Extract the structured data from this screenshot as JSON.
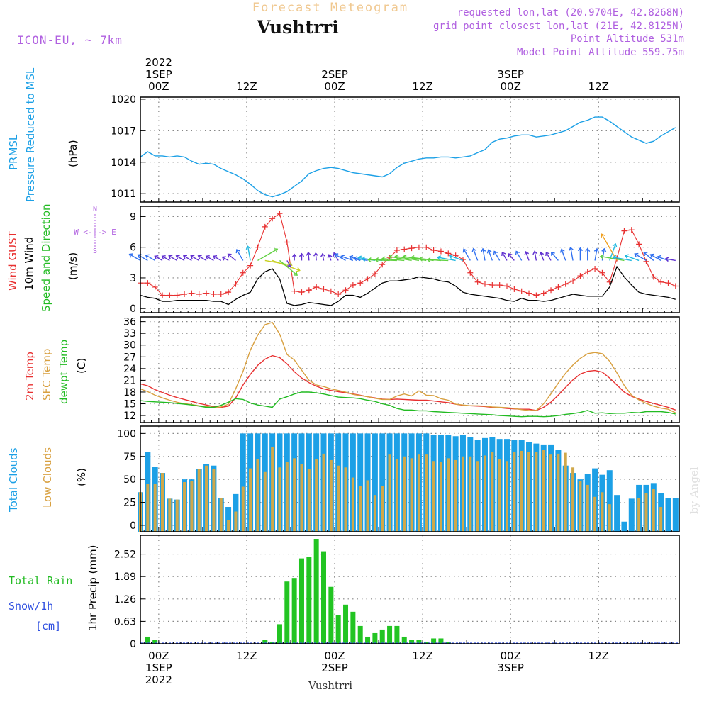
{
  "header": {
    "title_top": "Forecast Meteogram",
    "location": "Vushtrri",
    "model": "ICON-EU, ~ 7km",
    "requested": "requested lon,lat (20.9704E, 42.8268N)",
    "grid_point": "grid point closest lon,lat (21E, 42.8125N)",
    "point_altitude": "Point Altitude 531m",
    "model_altitude": "Model Point Altitude 559.75m",
    "footer_location": "Vushtrri",
    "credit": "by Angel"
  },
  "time_axis": {
    "top_labels": [
      {
        "hour": 0,
        "lines": [
          "2022",
          "1SEP",
          "00Z"
        ]
      },
      {
        "hour": 12,
        "lines": [
          "12Z"
        ]
      },
      {
        "hour": 24,
        "lines": [
          "2SEP",
          "00Z"
        ]
      },
      {
        "hour": 36,
        "lines": [
          "12Z"
        ]
      },
      {
        "hour": 48,
        "lines": [
          "3SEP",
          "00Z"
        ]
      },
      {
        "hour": 60,
        "lines": [
          "12Z"
        ]
      }
    ],
    "bottom_labels": [
      {
        "hour": 0,
        "lines": [
          "00Z",
          "1SEP",
          "2022"
        ]
      },
      {
        "hour": 12,
        "lines": [
          "12Z"
        ]
      },
      {
        "hour": 24,
        "lines": [
          "00Z",
          "2SEP"
        ]
      },
      {
        "hour": 36,
        "lines": [
          "12Z"
        ]
      },
      {
        "hour": 48,
        "lines": [
          "00Z",
          "3SEP"
        ]
      },
      {
        "hour": 60,
        "lines": [
          "12Z"
        ]
      }
    ]
  },
  "panels": {
    "pressure": {
      "label_1": "PRMSL",
      "label_2": "Pressure Reduced to MSL",
      "unit": "(hPa)",
      "ticks": [
        "1011",
        "1014",
        "1017",
        "1020"
      ]
    },
    "wind": {
      "label_gust": "Wind GUST",
      "label_wind": "10m Wind",
      "label_dir": "Speed and Direction",
      "unit": "(m/s)",
      "ticks": [
        "0",
        "3",
        "6",
        "9"
      ],
      "compass": [
        "N",
        "W <-|-> E",
        "S"
      ]
    },
    "temp": {
      "label_2m": "2m Temp",
      "label_sfc": "SFC Temp",
      "label_dew": "dewpt Temp",
      "unit": "(C)",
      "ticks": [
        "12",
        "15",
        "18",
        "21",
        "24",
        "27",
        "30",
        "33",
        "36"
      ]
    },
    "clouds": {
      "label_total": "Total Clouds",
      "label_low": "Low Clouds",
      "unit": "(%)",
      "ticks": [
        "0",
        "25",
        "50",
        "75",
        "100"
      ]
    },
    "precip": {
      "label_rain": "Total  Rain",
      "label_snow": "Snow/1h",
      "label_cm": "[cm]",
      "unit": "1hr Precip (mm)",
      "ticks": [
        "0",
        "0.63",
        "1.26",
        "1.89",
        "2.52"
      ]
    }
  },
  "chart_data": [
    {
      "type": "line",
      "series": [
        {
          "name": "PRMSL",
          "x": [
            -2.5,
            -1.5,
            -0.5,
            0.5,
            1.5,
            2.5,
            3.5,
            4.5,
            5.5,
            6.5,
            7.5,
            8.5,
            9.5,
            10.5,
            11.5,
            12.5,
            13.5,
            14.5,
            15.5,
            16.5,
            17.5,
            18.5,
            19.5,
            20.5,
            21.5,
            22.5,
            23.5,
            24.5,
            25.5,
            26.5,
            27.5,
            28.5,
            29.5,
            30.5,
            31.5,
            32.5,
            33.5,
            34.5,
            35.5,
            36.5,
            37.5,
            38.5,
            39.5,
            40.5,
            41.5,
            42.5,
            43.5,
            44.5,
            45.5,
            46.5,
            47.5,
            48.5,
            49.5,
            50.5,
            51.5,
            52.5,
            53.5,
            54.5,
            55.5,
            56.5,
            57.5,
            58.5,
            59.5,
            60.5,
            61.5,
            62.5,
            63.5,
            64.5,
            65.5,
            66.5,
            67.5,
            68.5,
            69.5,
            70.5
          ],
          "values": [
            1014.5,
            1015.0,
            1014.6,
            1014.6,
            1014.5,
            1014.6,
            1014.5,
            1014.1,
            1013.8,
            1013.9,
            1013.8,
            1013.4,
            1013.1,
            1012.8,
            1012.4,
            1011.9,
            1011.3,
            1010.9,
            1010.7,
            1010.9,
            1011.2,
            1011.7,
            1012.2,
            1012.9,
            1013.2,
            1013.4,
            1013.5,
            1013.4,
            1013.2,
            1013.0,
            1012.9,
            1012.8,
            1012.7,
            1012.6,
            1012.9,
            1013.5,
            1013.9,
            1014.1,
            1014.3,
            1014.4,
            1014.4,
            1014.5,
            1014.5,
            1014.4,
            1014.5,
            1014.6,
            1014.9,
            1015.2,
            1015.9,
            1016.2,
            1016.3,
            1016.5,
            1016.6,
            1016.6,
            1016.4,
            1016.5,
            1016.6,
            1016.8,
            1017.0,
            1017.4,
            1017.8,
            1018.0,
            1018.3,
            1018.3,
            1017.9,
            1017.4,
            1016.9,
            1016.4,
            1016.1,
            1015.8,
            1016.0,
            1016.5,
            1016.9,
            1017.3
          ]
        }
      ],
      "ylim": [
        1010.2,
        1020.2
      ],
      "ylabel": "(hPa)"
    },
    {
      "type": "line",
      "series": [
        {
          "name": "Wind GUST",
          "values": [
            2.5,
            2.5,
            2.1,
            1.3,
            1.3,
            1.3,
            1.4,
            1.5,
            1.4,
            1.5,
            1.4,
            1.4,
            1.6,
            2.4,
            3.5,
            4.2,
            6.0,
            8.0,
            8.8,
            9.3,
            6.5,
            1.7,
            1.6,
            1.8,
            2.1,
            1.9,
            1.7,
            1.4,
            1.8,
            2.3,
            2.5,
            2.9,
            3.4,
            4.3,
            5.0,
            5.7,
            5.8,
            5.9,
            6.0,
            6.0,
            5.7,
            5.6,
            5.4,
            5.2,
            4.8,
            3.5,
            2.6,
            2.4,
            2.3,
            2.3,
            2.2,
            1.9,
            1.7,
            1.5,
            1.3,
            1.5,
            1.8,
            2.1,
            2.4,
            2.7,
            3.2,
            3.6,
            3.9,
            3.5,
            2.6,
            4.9,
            7.6,
            7.7,
            6.3,
            4.6,
            3.1,
            2.6,
            2.5,
            2.2
          ]
        },
        {
          "name": "10m Wind",
          "values": [
            1.3,
            1.1,
            1.0,
            0.7,
            0.7,
            0.8,
            0.8,
            0.8,
            0.8,
            0.8,
            0.7,
            0.7,
            0.4,
            0.9,
            1.3,
            1.6,
            2.9,
            3.6,
            3.9,
            2.9,
            0.5,
            0.3,
            0.4,
            0.6,
            0.5,
            0.4,
            0.3,
            0.7,
            1.3,
            1.3,
            1.1,
            1.5,
            2.0,
            2.5,
            2.7,
            2.7,
            2.8,
            2.9,
            3.1,
            3.0,
            2.9,
            2.7,
            2.6,
            2.2,
            1.6,
            1.4,
            1.3,
            1.2,
            1.1,
            1.0,
            0.8,
            0.7,
            1.0,
            0.8,
            0.8,
            0.7,
            0.8,
            1.0,
            1.2,
            1.4,
            1.3,
            1.2,
            1.2,
            1.2,
            2.1,
            4.1,
            3.1,
            2.3,
            1.6,
            1.4,
            1.3,
            1.2,
            1.1,
            0.9
          ]
        }
      ],
      "ylim": [
        -0.4,
        10
      ],
      "ylabel": "(m/s)"
    },
    {
      "type": "line",
      "series": [
        {
          "name": "2m Temp",
          "values": [
            20.1,
            19.6,
            18.6,
            17.9,
            17.2,
            16.6,
            16.1,
            15.6,
            15.1,
            14.7,
            14.3,
            14.1,
            14.4,
            16.5,
            19.8,
            22.5,
            24.8,
            26.4,
            27.3,
            26.8,
            25.2,
            23.2,
            21.6,
            20.4,
            19.5,
            18.8,
            18.4,
            18.1,
            17.8,
            17.5,
            17.2,
            16.8,
            16.5,
            16.2,
            16.1,
            16.2,
            16.1,
            16.0,
            15.9,
            15.9,
            15.7,
            15.5,
            15.3,
            14.9,
            14.6,
            14.5,
            14.4,
            14.3,
            14.1,
            14.0,
            13.8,
            13.7,
            13.6,
            13.6,
            13.3,
            14.1,
            15.4,
            17.2,
            19.2,
            21.1,
            22.6,
            23.3,
            23.5,
            23.1,
            21.6,
            19.8,
            18.0,
            16.9,
            16.2,
            15.6,
            15.1,
            14.6,
            14.1,
            13.4
          ]
        },
        {
          "name": "SFC Temp",
          "values": [
            18.8,
            18.1,
            17.2,
            16.5,
            15.9,
            15.4,
            15.0,
            14.8,
            14.5,
            14.3,
            14.1,
            14.2,
            14.9,
            18.8,
            23.3,
            28.7,
            32.5,
            35.2,
            35.8,
            32.8,
            27.6,
            26.2,
            23.6,
            21.0,
            19.8,
            19.4,
            18.8,
            18.4,
            18.0,
            17.4,
            17.1,
            16.8,
            16.4,
            16.1,
            16.1,
            17.0,
            17.5,
            17.0,
            18.3,
            17.2,
            17.1,
            16.3,
            15.9,
            14.9,
            14.7,
            14.5,
            14.5,
            14.4,
            14.2,
            14.1,
            14.0,
            13.8,
            13.5,
            13.3,
            13.3,
            15.0,
            17.5,
            20.3,
            22.8,
            24.9,
            26.6,
            27.8,
            28.1,
            27.8,
            25.9,
            22.9,
            19.7,
            17.2,
            16.0,
            15.1,
            14.4,
            13.9,
            13.6,
            12.7
          ]
        },
        {
          "name": "dewpt Temp",
          "values": [
            15.8,
            15.6,
            15.5,
            15.4,
            15.3,
            15.1,
            14.9,
            14.7,
            14.4,
            14.1,
            14.1,
            14.6,
            15.4,
            16.3,
            16.1,
            15.2,
            14.7,
            14.4,
            14.1,
            16.2,
            16.8,
            17.5,
            18.0,
            18.0,
            17.8,
            17.5,
            17.1,
            16.7,
            16.6,
            16.5,
            16.3,
            15.9,
            15.6,
            15.0,
            14.6,
            13.8,
            13.4,
            13.4,
            13.2,
            13.2,
            13.0,
            12.9,
            12.8,
            12.7,
            12.6,
            12.5,
            12.4,
            12.3,
            12.2,
            12.0,
            11.9,
            11.8,
            11.7,
            11.8,
            11.8,
            11.7,
            11.8,
            12.0,
            12.3,
            12.5,
            12.8,
            13.3,
            12.6,
            12.7,
            12.5,
            12.6,
            12.6,
            12.8,
            12.7,
            13.0,
            13.0,
            13.0,
            12.8,
            12.4
          ]
        }
      ],
      "ylim": [
        10.2,
        37.2
      ],
      "ylabel": "(C)"
    },
    {
      "type": "bar",
      "series": [
        {
          "name": "Total Clouds",
          "values": [
            36,
            80,
            64,
            57,
            29,
            28,
            50,
            50,
            61,
            67,
            65,
            30,
            20,
            34,
            100,
            100,
            100,
            100,
            100,
            100,
            100,
            100,
            100,
            100,
            100,
            100,
            100,
            100,
            100,
            100,
            100,
            100,
            100,
            100,
            100,
            100,
            100,
            100,
            100,
            100,
            98,
            98,
            98,
            97,
            98,
            96,
            93,
            95,
            96,
            94,
            94,
            93,
            93,
            91,
            89,
            88,
            88,
            82,
            65,
            57,
            50,
            56,
            62,
            55,
            60,
            33,
            4,
            29,
            44,
            44,
            46,
            35,
            30,
            30
          ]
        },
        {
          "name": "Low Clouds",
          "values": [
            36,
            45,
            45,
            57,
            29,
            28,
            47,
            48,
            61,
            65,
            61,
            30,
            6,
            15,
            42,
            62,
            72,
            58,
            85,
            63,
            69,
            73,
            67,
            61,
            72,
            78,
            71,
            65,
            63,
            52,
            43,
            49,
            33,
            43,
            77,
            72,
            75,
            73,
            77,
            77,
            70,
            69,
            73,
            71,
            75,
            75,
            70,
            76,
            80,
            72,
            70,
            80,
            81,
            80,
            80,
            82,
            77,
            78,
            79,
            63,
            48,
            44,
            31,
            36,
            23,
            0,
            0,
            0,
            30,
            35,
            40,
            20,
            0,
            0
          ]
        }
      ],
      "ylim": [
        -7,
        108
      ],
      "ylabel": "(%)"
    },
    {
      "type": "bar",
      "series": [
        {
          "name": "1hr Precip",
          "values": [
            0,
            0.2,
            0.1,
            0,
            0,
            0,
            0,
            0,
            0,
            0,
            0,
            0,
            0,
            0,
            0,
            0,
            0,
            0.1,
            0.05,
            0.55,
            1.75,
            1.85,
            2.4,
            2.45,
            2.95,
            2.6,
            1.6,
            0.8,
            1.1,
            0.9,
            0.5,
            0.2,
            0.3,
            0.4,
            0.5,
            0.5,
            0.2,
            0.1,
            0.1,
            0.05,
            0.15,
            0.15,
            0.05,
            0,
            0,
            0,
            0,
            0,
            0,
            0,
            0,
            0,
            0,
            0,
            0,
            0,
            0,
            0,
            0,
            0,
            0,
            0,
            0,
            0,
            0,
            0,
            0,
            0,
            0,
            0,
            0,
            0,
            0,
            0
          ]
        }
      ],
      "ylim": [
        0,
        3.05
      ],
      "ylabel": "1hr Precip (mm)"
    }
  ]
}
